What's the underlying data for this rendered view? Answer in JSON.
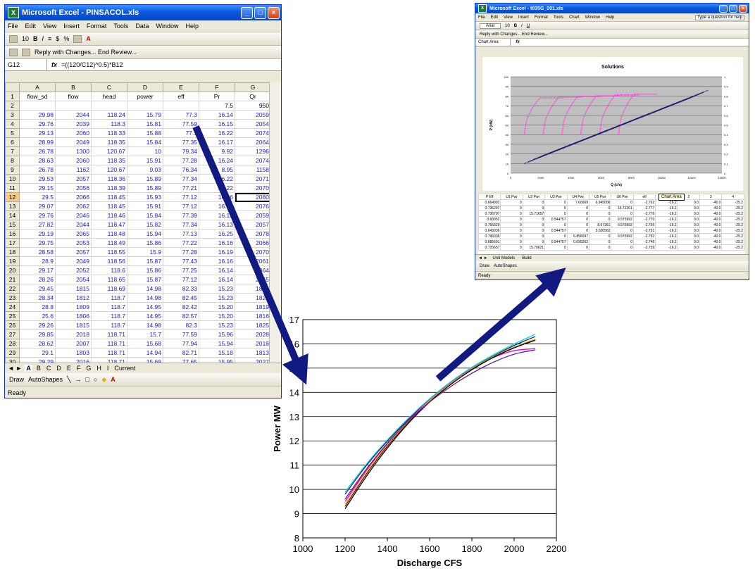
{
  "window1": {
    "title": "Microsoft Excel - PINSACOL.xls",
    "menus": [
      "File",
      "Edit",
      "View",
      "Insert",
      "Format",
      "Tools",
      "Data",
      "Window",
      "Help"
    ],
    "font_size": "10",
    "toolbar_text": "Reply with Changes...   End Review...",
    "name_box": "G12",
    "formula": "=((120/C12)^0.5)*B12",
    "columns": [
      "A",
      "B",
      "C",
      "D",
      "E",
      "F",
      "G"
    ],
    "headers": [
      "flow_sd",
      "flow",
      "head",
      "power",
      "eff",
      "Pr",
      "Qr"
    ],
    "row2": [
      "",
      "",
      "",
      "",
      "",
      "7.5",
      "950"
    ],
    "rows": [
      [
        "29.98",
        "2044",
        "118.24",
        "15.79",
        "77.3",
        "16.14",
        "2059"
      ],
      [
        "29.76",
        "2039",
        "118.3",
        "15.81",
        "77.59",
        "16.15",
        "2054"
      ],
      [
        "29.13",
        "2060",
        "118.33",
        "15.88",
        "77.1",
        "16.22",
        "2074"
      ],
      [
        "28.99",
        "2049",
        "118.35",
        "15.84",
        "77.35",
        "16.17",
        "2064"
      ],
      [
        "26.78",
        "1300",
        "120.67",
        "10",
        "79.34",
        "9.92",
        "1296"
      ],
      [
        "28.63",
        "2060",
        "118.35",
        "15.91",
        "77.28",
        "16.24",
        "2074"
      ],
      [
        "26.78",
        "1162",
        "120.67",
        "9.03",
        "76.34",
        "8.95",
        "1158"
      ],
      [
        "29.53",
        "2057",
        "118.36",
        "15.89",
        "77.34",
        "16.22",
        "2071"
      ],
      [
        "29.15",
        "2056",
        "118.39",
        "15.89",
        "77.21",
        "16.22",
        "2070"
      ],
      [
        "29.5",
        "2066",
        "118.45",
        "15.93",
        "77.12",
        "16.26",
        "2080"
      ],
      [
        "29.07",
        "2062",
        "118.45",
        "15.91",
        "77.12",
        "16.24",
        "2076"
      ],
      [
        "29.76",
        "2046",
        "118.46",
        "15.84",
        "77.39",
        "16.15",
        "2059"
      ],
      [
        "27.82",
        "2044",
        "118.47",
        "15.82",
        "77.34",
        "16.13",
        "2057"
      ],
      [
        "29.19",
        "2065",
        "118.48",
        "15.94",
        "77.13",
        "16.25",
        "2078"
      ],
      [
        "29.75",
        "2053",
        "118.49",
        "15.86",
        "77.22",
        "16.16",
        "2066"
      ],
      [
        "28.58",
        "2057",
        "118.55",
        "15.9",
        "77.28",
        "16.19",
        "2070"
      ],
      [
        "28.9",
        "2049",
        "118.56",
        "15.87",
        "77.43",
        "16.16",
        "2061"
      ],
      [
        "29.17",
        "2052",
        "118.6",
        "15.86",
        "77.25",
        "16.14",
        "2064"
      ],
      [
        "28.26",
        "2054",
        "118.65",
        "15.87",
        "77.12",
        "16.14",
        "2065"
      ],
      [
        "29.45",
        "1815",
        "118.69",
        "14.98",
        "82.33",
        "15.23",
        "1825"
      ],
      [
        "28.34",
        "1812",
        "118.7",
        "14.98",
        "82.45",
        "15.23",
        "1822"
      ],
      [
        "28.8",
        "1809",
        "118.7",
        "14.95",
        "82.42",
        "15.20",
        "1819"
      ],
      [
        "25.6",
        "1806",
        "118.7",
        "14.95",
        "82.57",
        "15.20",
        "1816"
      ],
      [
        "29.26",
        "1815",
        "118.7",
        "14.98",
        "82.3",
        "15.23",
        "1825"
      ],
      [
        "29.85",
        "2018",
        "118.71",
        "15.7",
        "77.59",
        "15.96",
        "2028"
      ],
      [
        "28.62",
        "2007",
        "118.71",
        "15.68",
        "77.94",
        "15.94",
        "2018"
      ],
      [
        "29.1",
        "1803",
        "118.71",
        "14.94",
        "82.71",
        "15.18",
        "1813"
      ],
      [
        "29.29",
        "2016",
        "118.71",
        "15.69",
        "77.65",
        "15.95",
        "2027"
      ]
    ],
    "sheet_tabs": [
      "A",
      "B",
      "C",
      "D",
      "E",
      "F",
      "G",
      "H",
      "I",
      "Current"
    ],
    "draw_label": "Draw",
    "autoshapes_label": "AutoShapes",
    "status": "Ready"
  },
  "window2": {
    "title": "Microsoft Excel - t035G_001.xls",
    "menus": [
      "File",
      "Edit",
      "View",
      "Insert",
      "Format",
      "Tools",
      "Chart",
      "Window",
      "Help"
    ],
    "help_box": "Type a question for help",
    "font": "Arial",
    "font_size": "10",
    "toolbar_text": "Reply with Changes...   End Review...",
    "name_box": "Chart Area",
    "chart_title": "Solutions",
    "ylabel": "P (kW)",
    "xlabel": "Q (cfs)",
    "x_ticks": [
      "0",
      "2000",
      "4000",
      "6000",
      "8000",
      "10000",
      "12000",
      "14000"
    ],
    "y_ticks": [
      "0",
      "10",
      "20",
      "30",
      "40",
      "50",
      "60",
      "70",
      "80",
      "90",
      "100"
    ],
    "y2_ticks": [
      "0",
      "0.1",
      "0.2",
      "0.3",
      "0.4",
      "0.5",
      "0.6",
      "0.7",
      "0.8",
      "0.9",
      "1"
    ],
    "tooltip": "Chart Area",
    "table_header": [
      "P Eff",
      "U1 Pwr",
      "U2 Pwr",
      "U3 Pwr",
      "U4 Pwr",
      "U5 Pwr",
      "U6 Pwr",
      "eff",
      "1",
      "2",
      "3",
      "4"
    ],
    "table_rows": [
      [
        "0.664992",
        "0",
        "0",
        "0",
        "7.60069",
        "6.945006",
        "0",
        "-2.792",
        "-16.2",
        "0.0",
        "-40.0",
        "-25.2"
      ],
      [
        "0.736297",
        "0",
        "0",
        "0",
        "0",
        "0",
        "15.72261",
        "-2.777",
        "-16.2",
        "0.0",
        "-40.0",
        "-25.2"
      ],
      [
        "0.736707",
        "0",
        "15.71657",
        "0",
        "0",
        "0",
        "0",
        "-2.776",
        "-16.2",
        "0.0",
        "-40.0",
        "-25.2"
      ],
      [
        "0.60052",
        "0",
        "0",
        "0.544757",
        "0",
        "0",
        "6.575992",
        "-2.770",
        "-16.2",
        "0.0",
        "-40.0",
        "-25.2"
      ],
      [
        "0.756329",
        "0",
        "0",
        "0",
        "0",
        "8.57361",
        "6.575992",
        "-2.756",
        "-16.2",
        "0.0",
        "-40.0",
        "-25.2"
      ],
      [
        "0.643036",
        "0",
        "0",
        "0.544757",
        "0",
        "5.020562",
        "0",
        "-2.751",
        "-16.2",
        "0.0",
        "-40.0",
        "-25.2"
      ],
      [
        "0.796036",
        "0",
        "0",
        "0",
        "6.856097",
        "0",
        "6.575992",
        "-2.752",
        "-16.2",
        "0.0",
        "-40.0",
        "-25.2"
      ],
      [
        "0.685691",
        "0",
        "0",
        "0.544757",
        "0.095262",
        "0",
        "0",
        "-2.746",
        "-16.2",
        "0.0",
        "-40.0",
        "-25.2"
      ],
      [
        "0.725657",
        "0",
        "15.70621",
        "0",
        "0",
        "0",
        "0",
        "-2.739",
        "-16.2",
        "0.0",
        "-40.0",
        "-25.2"
      ]
    ],
    "sheet_tabs": [
      "Unit Models",
      "Build"
    ],
    "draw_label": "Draw",
    "autoshapes_label": "AutoShapes",
    "status": "Ready"
  },
  "colors": {
    "arrow": "#101a80",
    "selection": "#000000",
    "pink": "#ff33dd",
    "navy": "#1a1a6e"
  },
  "chart_data": {
    "type": "line",
    "title": "",
    "xlabel": "Discharge CFS",
    "ylabel": "Power MW",
    "xlim": [
      1000,
      2200
    ],
    "ylim": [
      8,
      17
    ],
    "x_ticks": [
      1000,
      1200,
      1400,
      1600,
      1800,
      2000,
      2200
    ],
    "y_ticks": [
      8,
      9,
      10,
      11,
      12,
      13,
      14,
      15,
      16,
      17
    ],
    "grid": "horizontal",
    "x": [
      1200,
      1300,
      1400,
      1500,
      1600,
      1700,
      1800,
      1900,
      2000,
      2100
    ],
    "series": [
      {
        "color": "#00d8d8",
        "values": [
          9.9,
          11.05,
          12.05,
          12.95,
          13.75,
          14.45,
          15.05,
          15.55,
          16.0,
          16.4
        ]
      },
      {
        "color": "#1a237e",
        "values": [
          9.8,
          11.0,
          12.0,
          12.9,
          13.7,
          14.4,
          15.0,
          15.5,
          15.95,
          16.3
        ]
      },
      {
        "color": "#e000e0",
        "values": [
          9.5,
          10.8,
          11.9,
          12.85,
          13.7,
          14.4,
          15.0,
          15.45,
          15.75,
          15.8
        ]
      },
      {
        "color": "#800000",
        "values": [
          9.3,
          10.65,
          11.8,
          12.8,
          13.65,
          14.35,
          14.95,
          15.45,
          15.85,
          16.15
        ]
      },
      {
        "color": "#d4b800",
        "values": [
          9.4,
          10.75,
          11.85,
          12.82,
          13.68,
          14.38,
          14.98,
          15.48,
          15.88,
          16.2
        ]
      },
      {
        "color": "#000000",
        "values": [
          9.2,
          10.55,
          11.72,
          12.75,
          13.62,
          14.34,
          14.95,
          15.45,
          15.85,
          16.15
        ]
      },
      {
        "color": "#6a1b9a",
        "values": [
          9.6,
          10.85,
          11.92,
          12.85,
          13.62,
          14.25,
          14.8,
          15.25,
          15.6,
          15.75
        ]
      }
    ]
  }
}
